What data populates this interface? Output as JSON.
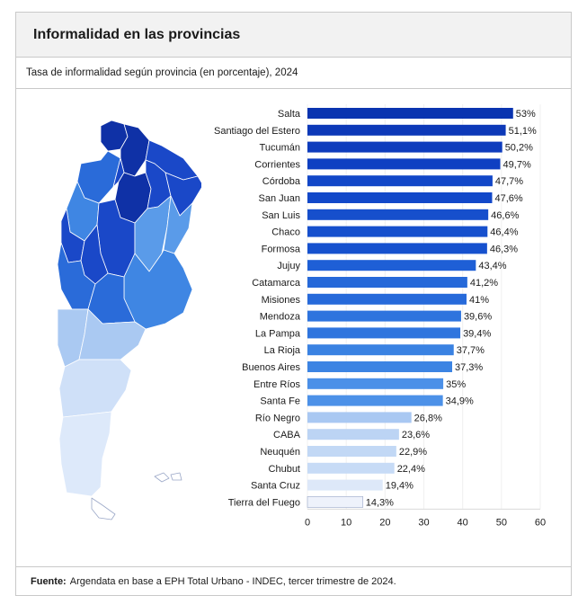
{
  "header": {
    "title": "Informalidad en las provincias"
  },
  "subheader": {
    "subtitle": "Tasa de informalidad según provincia (en porcentaje), 2024"
  },
  "footer": {
    "label": "Fuente:",
    "text": "Argendata en base a EPH Total Urbano - INDEC, tercer trimestre de 2024."
  },
  "chart_data": {
    "type": "bar",
    "orientation": "horizontal",
    "title": "",
    "xlabel": "",
    "ylabel": "",
    "xlim": [
      0,
      60
    ],
    "xticks": [
      "0",
      "10",
      "20",
      "30",
      "40",
      "50",
      "60"
    ],
    "grid": true,
    "categories": [
      "Salta",
      "Santiago del Estero",
      "Tucumán",
      "Corrientes",
      "Córdoba",
      "San Juan",
      "San Luis",
      "Chaco",
      "Formosa",
      "Jujuy",
      "Catamarca",
      "Misiones",
      "Mendoza",
      "La Pampa",
      "La Rioja",
      "Buenos Aires",
      "Entre Ríos",
      "Santa Fe",
      "Río Negro",
      "CABA",
      "Neuquén",
      "Chubut",
      "Santa Cruz",
      "Tierra del Fuego"
    ],
    "values": [
      53,
      51.1,
      50.2,
      49.7,
      47.7,
      47.6,
      46.6,
      46.4,
      46.3,
      43.4,
      41.2,
      41,
      39.6,
      39.4,
      37.7,
      37.3,
      35,
      34.9,
      26.8,
      23.6,
      22.9,
      22.4,
      19.4,
      14.3
    ],
    "value_labels": [
      "53%",
      "51,1%",
      "50,2%",
      "49,7%",
      "47,7%",
      "47,6%",
      "46,6%",
      "46,4%",
      "46,3%",
      "43,4%",
      "41,2%",
      "41%",
      "39,6%",
      "39,4%",
      "37,7%",
      "37,3%",
      "35%",
      "34,9%",
      "26,8%",
      "23,6%",
      "22,9%",
      "22,4%",
      "19,4%",
      "14,3%"
    ],
    "colors": [
      "#0a34b0",
      "#0d39b8",
      "#0e3cbd",
      "#0f40c2",
      "#1247c8",
      "#1248c9",
      "#164fcc",
      "#1650cd",
      "#1651ce",
      "#1e5fd6",
      "#2669d9",
      "#276ada",
      "#2e74de",
      "#2f75de",
      "#3a82e2",
      "#3c84e3",
      "#4b90e8",
      "#4c91e8",
      "#a9c8f2",
      "#bcd4f4",
      "#c2d8f5",
      "#c7dbf6",
      "#dde8f9",
      "#eef2fb"
    ]
  },
  "map": {
    "region_colors": {
      "dark": "#0f31a6",
      "strong": "#1a48c8",
      "medium": "#2a6bd9",
      "mid": "#3f86e3",
      "light": "#5a9be9",
      "pale": "#aac9f2",
      "very_pale": "#cfe0f8",
      "lightest": "#dde9fa"
    }
  }
}
